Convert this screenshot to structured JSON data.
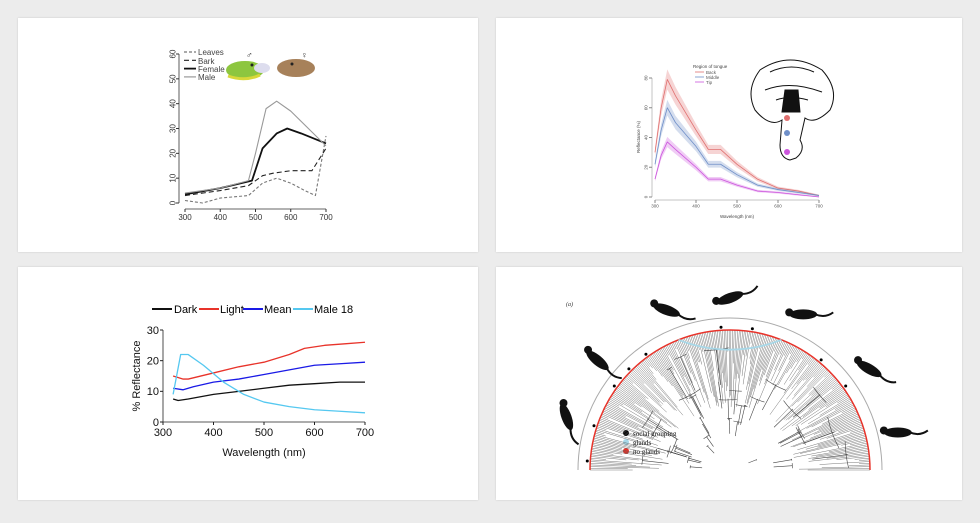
{
  "chart_data": [
    {
      "type": "line",
      "xlim": [
        300,
        700
      ],
      "ylim": [
        0,
        60
      ],
      "xticks": [
        300,
        400,
        500,
        600,
        700
      ],
      "yticks": [
        0,
        10,
        20,
        30,
        40,
        50,
        60
      ],
      "legend_placement": "top-left",
      "symbols": {
        "male": "♂",
        "female": "♀"
      },
      "series": [
        {
          "name": "Leaves",
          "style": "dashed-thin",
          "color": "#777777",
          "x": [
            300,
            350,
            400,
            480,
            520,
            560,
            600,
            640,
            670,
            700
          ],
          "y": [
            1,
            0,
            2,
            3,
            8,
            10,
            8,
            5,
            3,
            27
          ]
        },
        {
          "name": "Bark",
          "style": "dashed",
          "color": "#222222",
          "x": [
            300,
            400,
            480,
            520,
            550,
            600,
            660,
            700
          ],
          "y": [
            3,
            5,
            7,
            11,
            12,
            13,
            13,
            22
          ]
        },
        {
          "name": "Female",
          "style": "solid-thick",
          "color": "#111111",
          "x": [
            300,
            400,
            490,
            520,
            560,
            590,
            630,
            700
          ],
          "y": [
            3.5,
            6,
            9,
            22,
            28,
            30,
            28,
            24
          ]
        },
        {
          "name": "Male",
          "style": "solid",
          "color": "#999999",
          "x": [
            300,
            400,
            480,
            500,
            530,
            560,
            600,
            650,
            700
          ],
          "y": [
            4,
            6,
            9,
            20,
            38,
            41,
            37,
            30,
            23
          ]
        }
      ]
    },
    {
      "type": "line",
      "xlabel": "Wavelength (nm)",
      "ylabel": "Reflectance (%)",
      "xlim": [
        300,
        700
      ],
      "ylim": [
        0,
        80
      ],
      "xticks": [
        300,
        400,
        500,
        600,
        700
      ],
      "yticks": [
        0,
        20,
        40,
        60,
        80
      ],
      "legend_title": "Region of tongue",
      "legend_placement": "top-center",
      "series": [
        {
          "name": "Back",
          "color": "#e07070",
          "x": [
            300,
            315,
            330,
            350,
            400,
            430,
            460,
            500,
            550,
            600,
            650,
            700
          ],
          "y": [
            30,
            60,
            79,
            68,
            45,
            32,
            32,
            22,
            12,
            6,
            4,
            1
          ]
        },
        {
          "name": "Middle",
          "color": "#6f8fc8",
          "x": [
            300,
            315,
            330,
            350,
            400,
            430,
            460,
            500,
            550,
            600,
            650,
            700
          ],
          "y": [
            22,
            45,
            60,
            50,
            34,
            22,
            22,
            15,
            8,
            5,
            3,
            1
          ]
        },
        {
          "name": "Tip",
          "color": "#cc55dd",
          "x": [
            300,
            315,
            330,
            350,
            400,
            430,
            460,
            500,
            550,
            600,
            650,
            700
          ],
          "y": [
            12,
            28,
            37,
            32,
            20,
            12,
            12,
            8,
            4,
            3,
            1.5,
            0
          ]
        }
      ]
    },
    {
      "type": "line",
      "xlabel": "Wavelength (nm)",
      "ylabel": "% Reflectance",
      "xlim": [
        300,
        700
      ],
      "ylim": [
        0,
        30
      ],
      "xticks": [
        300,
        400,
        500,
        600,
        700
      ],
      "yticks": [
        0,
        10,
        20,
        30
      ],
      "legend_placement": "top",
      "series": [
        {
          "name": "Dark",
          "color": "#111111",
          "x": [
            320,
            330,
            350,
            400,
            450,
            500,
            550,
            600,
            650,
            700
          ],
          "y": [
            7.5,
            7,
            7.5,
            9,
            10,
            11,
            12,
            12.5,
            13,
            13
          ]
        },
        {
          "name": "Light",
          "color": "#e8332a",
          "x": [
            320,
            340,
            350,
            400,
            450,
            500,
            550,
            580,
            620,
            660,
            700
          ],
          "y": [
            15,
            14,
            14,
            16,
            18,
            19.5,
            22,
            24,
            25,
            25.5,
            26
          ]
        },
        {
          "name": "Mean",
          "color": "#1a1ae6",
          "x": [
            320,
            340,
            360,
            400,
            450,
            500,
            550,
            600,
            650,
            700
          ],
          "y": [
            11,
            10.5,
            11.5,
            13,
            14,
            15.5,
            17,
            18.5,
            19,
            19.5
          ]
        },
        {
          "name": "Male 18",
          "color": "#55c8f0",
          "x": [
            320,
            335,
            350,
            380,
            420,
            460,
            500,
            550,
            600,
            650,
            700
          ],
          "y": [
            9,
            22,
            22,
            18.5,
            13,
            9,
            6.5,
            5,
            4,
            3.5,
            3
          ]
        }
      ]
    },
    {
      "type": "diagram",
      "panel_label": "(a)",
      "legend": [
        {
          "label": "social grouping",
          "color": "#000000"
        },
        {
          "label": "glands",
          "color": "#a8d8e8"
        },
        {
          "label": "no glands",
          "color": "#e8332a"
        }
      ]
    }
  ]
}
